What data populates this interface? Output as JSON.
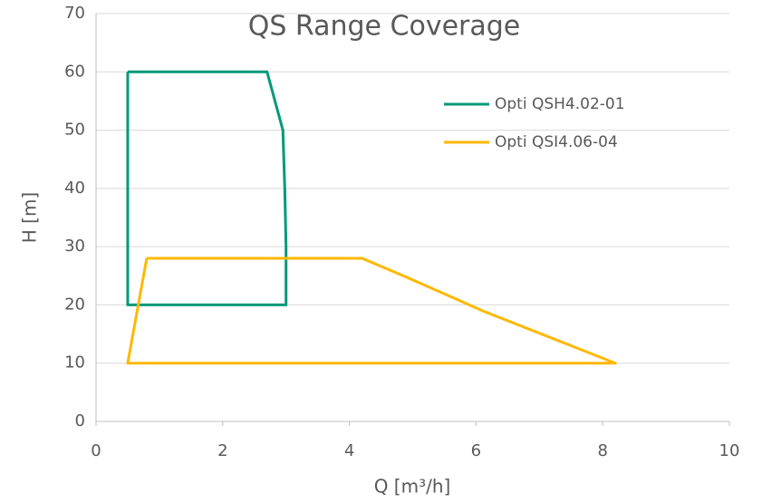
{
  "chart_data": {
    "type": "line",
    "title": "QS Range Coverage",
    "x_label": "Q [m³/h]",
    "y_label": "H [m]",
    "xlim": [
      0,
      10
    ],
    "xticks": [
      0,
      2,
      4,
      6,
      8,
      10
    ],
    "ylim": [
      0,
      70
    ],
    "yticks": [
      0,
      10,
      20,
      30,
      40,
      50,
      60,
      70
    ],
    "grid": true,
    "legend": "upper right",
    "series": [
      {
        "name": "Opti QSH4.02-01",
        "color": "#00997a",
        "x": [
          0.5,
          2.7,
          2.95,
          2.98,
          3.0,
          3.0,
          0.5,
          0.5
        ],
        "values": [
          60,
          60,
          50,
          40,
          30,
          20,
          20,
          60
        ]
      },
      {
        "name": "Opti QSI4.06-04",
        "color": "#ffb800",
        "x": [
          0.8,
          4.2,
          4.85,
          5.48,
          6.1,
          8.2,
          0.5,
          0.8
        ],
        "values": [
          28,
          28,
          25,
          22,
          19,
          10,
          10,
          28
        ]
      }
    ]
  }
}
